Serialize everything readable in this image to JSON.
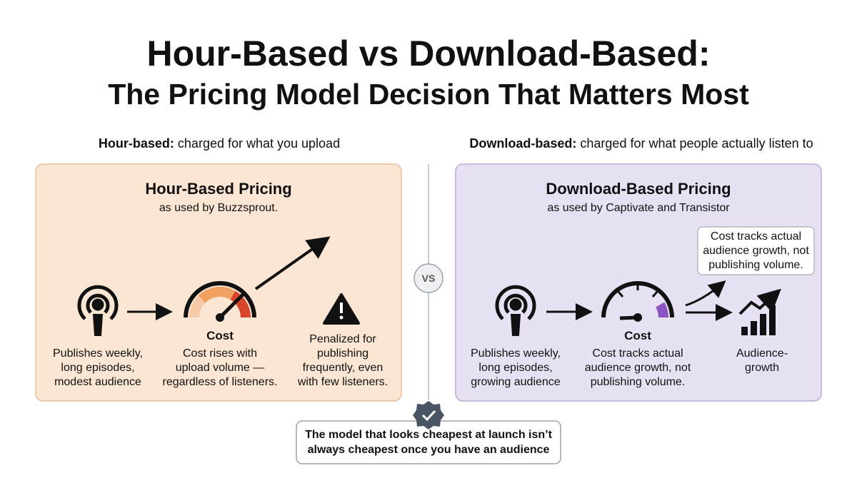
{
  "header": {
    "title_lines": [
      "Hour-Based vs Download-Based:",
      "The Pricing Model Decision That Matters Most"
    ]
  },
  "captions": [
    {
      "label": "Hour-based:",
      "text": "charged for what you upload"
    },
    {
      "label": "Download-based:",
      "text": "charged for what people actually listen to"
    }
  ],
  "panels": [
    {
      "title": "Hour-Based Pricing",
      "subtitle": "as used by Buzzsprout.",
      "steps": [
        {
          "lines": [
            "Publishes weekly,",
            "long episodes,",
            "modest audience"
          ]
        },
        {
          "label": "Cost",
          "lines": [
            "Cost rises with",
            "upload volume —",
            "regardless of listeners."
          ]
        },
        {
          "lines": [
            "Penalized for",
            "publishing",
            "frequently, even",
            "with few listeners."
          ]
        }
      ]
    },
    {
      "title": "Download-Based Pricing",
      "subtitle": "as used by Captivate and Transistor",
      "callout_lines": [
        "Cost tracks actual",
        "audience growth, not",
        "publishing volume."
      ],
      "steps": [
        {
          "lines": [
            "Publishes weekly,",
            "long episodes,",
            "growing audience"
          ]
        },
        {
          "label": "Cost",
          "lines": [
            "Cost tracks actual",
            "audience growth, not",
            "publishing volume."
          ]
        },
        {
          "lines": [
            "Audience-",
            "growth"
          ]
        }
      ]
    }
  ],
  "divider": "VS",
  "footer": {
    "lines": [
      "The model that looks cheapest at launch isn’t",
      "always cheapest once you have an audience"
    ]
  }
}
